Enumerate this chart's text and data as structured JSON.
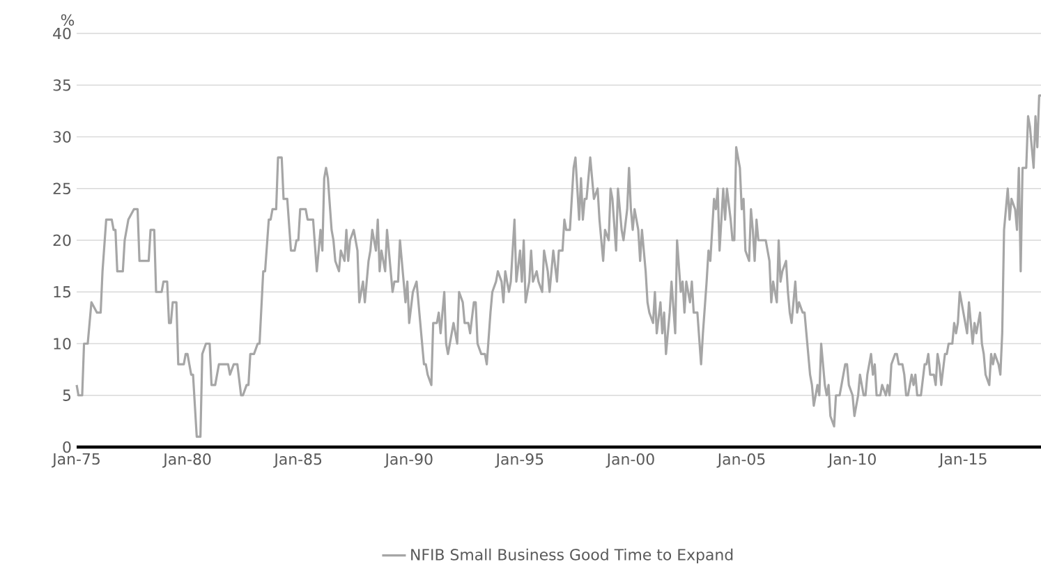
{
  "chart_data": {
    "type": "line",
    "ylabel": "%",
    "xlim": [
      "1975-01",
      "2018-07"
    ],
    "ylim": [
      0,
      40
    ],
    "xticks": [
      {
        "value": "1975-01",
        "label": "Jan-75"
      },
      {
        "value": "1980-01",
        "label": "Jan-80"
      },
      {
        "value": "1985-01",
        "label": "Jan-85"
      },
      {
        "value": "1990-01",
        "label": "Jan-90"
      },
      {
        "value": "1995-01",
        "label": "Jan-95"
      },
      {
        "value": "2000-01",
        "label": "Jan-00"
      },
      {
        "value": "2005-01",
        "label": "Jan-05"
      },
      {
        "value": "2010-01",
        "label": "Jan-10"
      },
      {
        "value": "2015-01",
        "label": "Jan-15"
      }
    ],
    "yticks": [
      0,
      5,
      10,
      15,
      20,
      25,
      30,
      35,
      40
    ],
    "grid": "y",
    "legend": "bottom",
    "series": [
      {
        "name": "NFIB Small Business Good Time to Expand",
        "color": "#a6a6a6",
        "x": [
          "1975-01",
          "1975-02",
          "1975-04",
          "1975-05",
          "1975-07",
          "1975-09",
          "1975-12",
          "1976-02",
          "1976-03",
          "1976-05",
          "1976-08",
          "1976-09",
          "1976-10",
          "1976-11",
          "1977-02",
          "1977-03",
          "1977-05",
          "1977-08",
          "1977-10",
          "1977-11",
          "1978-04",
          "1978-05",
          "1978-07",
          "1978-08",
          "1978-11",
          "1978-12",
          "1979-02",
          "1979-03",
          "1979-04",
          "1979-05",
          "1979-07",
          "1979-08",
          "1979-11",
          "1979-12",
          "1980-01",
          "1980-03",
          "1980-04",
          "1980-06",
          "1980-08",
          "1980-09",
          "1980-11",
          "1981-01",
          "1981-02",
          "1981-04",
          "1981-06",
          "1981-11",
          "1981-12",
          "1982-02",
          "1982-04",
          "1982-06",
          "1982-07",
          "1982-09",
          "1982-10",
          "1982-11",
          "1983-01",
          "1983-03",
          "1983-04",
          "1983-06",
          "1983-07",
          "1983-09",
          "1983-10",
          "1983-11",
          "1984-01",
          "1984-02",
          "1984-04",
          "1984-05",
          "1984-07",
          "1984-09",
          "1984-11",
          "1984-12",
          "1985-01",
          "1985-02",
          "1985-05",
          "1985-06",
          "1985-09",
          "1985-11",
          "1986-01",
          "1986-02",
          "1986-03",
          "1986-04",
          "1986-05",
          "1986-07",
          "1986-08",
          "1986-09",
          "1986-11",
          "1986-12",
          "1987-02",
          "1987-03",
          "1987-04",
          "1987-05",
          "1987-07",
          "1987-09",
          "1987-10",
          "1987-12",
          "1988-01",
          "1988-03",
          "1988-04",
          "1988-05",
          "1988-07",
          "1988-08",
          "1988-09",
          "1988-10",
          "1988-12",
          "1989-01",
          "1989-04",
          "1989-05",
          "1989-07",
          "1989-08",
          "1989-10",
          "1989-11",
          "1989-12",
          "1990-01",
          "1990-03",
          "1990-05",
          "1990-06",
          "1990-08",
          "1990-09",
          "1990-10",
          "1990-11",
          "1991-01",
          "1991-02",
          "1991-04",
          "1991-05",
          "1991-06",
          "1991-08",
          "1991-09",
          "1991-10",
          "1991-12",
          "1992-01",
          "1992-03",
          "1992-04",
          "1992-06",
          "1992-07",
          "1992-09",
          "1992-10",
          "1992-12",
          "1993-01",
          "1993-02",
          "1993-04",
          "1993-06",
          "1993-07",
          "1993-09",
          "1993-10",
          "1993-12",
          "1994-01",
          "1994-03",
          "1994-04",
          "1994-05",
          "1994-07",
          "1994-08",
          "1994-10",
          "1994-11",
          "1995-01",
          "1995-02",
          "1995-03",
          "1995-04",
          "1995-06",
          "1995-07",
          "1995-08",
          "1995-10",
          "1995-11",
          "1996-01",
          "1996-02",
          "1996-04",
          "1996-05",
          "1996-06",
          "1996-07",
          "1996-09",
          "1996-10",
          "1996-12",
          "1997-01",
          "1997-02",
          "1997-04",
          "1997-06",
          "1997-07",
          "1997-09",
          "1997-10",
          "1997-11",
          "1997-12",
          "1998-01",
          "1998-03",
          "1998-04",
          "1998-05",
          "1998-07",
          "1998-08",
          "1998-10",
          "1998-11",
          "1999-01",
          "1999-02",
          "1999-03",
          "1999-05",
          "1999-06",
          "1999-08",
          "1999-09",
          "1999-11",
          "1999-12",
          "2000-01",
          "2000-02",
          "2000-03",
          "2000-05",
          "2000-06",
          "2000-07",
          "2000-09",
          "2000-10",
          "2000-11",
          "2001-01",
          "2001-02",
          "2001-03",
          "2001-05",
          "2001-06",
          "2001-07",
          "2001-08",
          "2001-10",
          "2001-11",
          "2002-01",
          "2002-02",
          "2002-04",
          "2002-05",
          "2002-06",
          "2002-07",
          "2002-09",
          "2002-10",
          "2002-11",
          "2003-01",
          "2003-03",
          "2003-04",
          "2003-06",
          "2003-07",
          "2003-08",
          "2003-10",
          "2003-11",
          "2003-12",
          "2004-01",
          "2004-03",
          "2004-04",
          "2004-05",
          "2004-07",
          "2004-08",
          "2004-09",
          "2004-10",
          "2004-12",
          "2005-01",
          "2005-02",
          "2005-03",
          "2005-05",
          "2005-06",
          "2005-07",
          "2005-08",
          "2005-09",
          "2005-10",
          "2005-12",
          "2006-02",
          "2006-04",
          "2006-05",
          "2006-06",
          "2006-08",
          "2006-09",
          "2006-10",
          "2006-11",
          "2007-01",
          "2007-02",
          "2007-03",
          "2007-04",
          "2007-06",
          "2007-07",
          "2007-08",
          "2007-10",
          "2007-11",
          "2008-01",
          "2008-02",
          "2008-03",
          "2008-04",
          "2008-06",
          "2008-07",
          "2008-08",
          "2008-10",
          "2008-11",
          "2008-12",
          "2009-01",
          "2009-03",
          "2009-04",
          "2009-06",
          "2009-07",
          "2009-09",
          "2009-10",
          "2009-11",
          "2010-01",
          "2010-02",
          "2010-04",
          "2010-05",
          "2010-07",
          "2010-08",
          "2010-09",
          "2010-11",
          "2010-12",
          "2011-01",
          "2011-02",
          "2011-04",
          "2011-05",
          "2011-07",
          "2011-08",
          "2011-09",
          "2011-10",
          "2011-12",
          "2012-01",
          "2012-02",
          "2012-04",
          "2012-05",
          "2012-06",
          "2012-07",
          "2012-09",
          "2012-10",
          "2012-11",
          "2012-12",
          "2013-02",
          "2013-04",
          "2013-05",
          "2013-06",
          "2013-07",
          "2013-09",
          "2013-10",
          "2013-11",
          "2013-12",
          "2014-01",
          "2014-03",
          "2014-04",
          "2014-05",
          "2014-07",
          "2014-08",
          "2014-09",
          "2014-10",
          "2014-11",
          "2015-01",
          "2015-02",
          "2015-03",
          "2015-04",
          "2015-06",
          "2015-07",
          "2015-08",
          "2015-10",
          "2015-11",
          "2015-12",
          "2016-01",
          "2016-03",
          "2016-04",
          "2016-05",
          "2016-06",
          "2016-08",
          "2016-09",
          "2016-10",
          "2016-11",
          "2017-01",
          "2017-02",
          "2017-03",
          "2017-05",
          "2017-06",
          "2017-07",
          "2017-08",
          "2017-09",
          "2017-11",
          "2017-12",
          "2018-01",
          "2018-03",
          "2018-04",
          "2018-05",
          "2018-06",
          "2018-07"
        ],
        "values": [
          6,
          5,
          5,
          10,
          10,
          14,
          13,
          13,
          17,
          22,
          22,
          21,
          21,
          17,
          17,
          20,
          22,
          23,
          23,
          18,
          18,
          21,
          21,
          15,
          15,
          16,
          16,
          12,
          12,
          14,
          14,
          8,
          8,
          9,
          9,
          7,
          7,
          1,
          1,
          9,
          10,
          10,
          6,
          6,
          8,
          8,
          7,
          8,
          8,
          5,
          5,
          6,
          6,
          9,
          9,
          10,
          10,
          17,
          17,
          22,
          22,
          23,
          23,
          28,
          28,
          24,
          24,
          19,
          19,
          20,
          20,
          23,
          23,
          22,
          22,
          17,
          21,
          19,
          26,
          27,
          26,
          21,
          20,
          18,
          17,
          19,
          18,
          21,
          18,
          20,
          21,
          19,
          14,
          16,
          14,
          18,
          19,
          21,
          19,
          22,
          17,
          19,
          17,
          21,
          15,
          16,
          16,
          20,
          16,
          14,
          16,
          12,
          15,
          16,
          14,
          10,
          8,
          8,
          7,
          6,
          12,
          12,
          13,
          11,
          15,
          10,
          9,
          11,
          12,
          10,
          15,
          14,
          12,
          12,
          11,
          14,
          14,
          10,
          9,
          9,
          8,
          13,
          15,
          16,
          17,
          16,
          14,
          17,
          15,
          16,
          22,
          16,
          19,
          16,
          20,
          14,
          16,
          19,
          16,
          17,
          16,
          15,
          19,
          17,
          15,
          17,
          19,
          16,
          19,
          19,
          22,
          21,
          21,
          27,
          28,
          22,
          26,
          22,
          24,
          24,
          28,
          26,
          24,
          25,
          22,
          18,
          21,
          20,
          25,
          24,
          19,
          25,
          21,
          20,
          23,
          27,
          23,
          21,
          23,
          21,
          18,
          21,
          17,
          14,
          13,
          12,
          15,
          11,
          14,
          11,
          13,
          9,
          13,
          16,
          11,
          20,
          15,
          16,
          13,
          16,
          14,
          16,
          13,
          13,
          8,
          11,
          16,
          19,
          18,
          24,
          23,
          25,
          19,
          25,
          22,
          25,
          22,
          20,
          20,
          29,
          27,
          23,
          24,
          19,
          18,
          23,
          21,
          18,
          22,
          20,
          20,
          20,
          18,
          14,
          16,
          14,
          20,
          16,
          17,
          18,
          15,
          13,
          12,
          16,
          13,
          14,
          13,
          13,
          9,
          7,
          6,
          4,
          6,
          5,
          10,
          6,
          5,
          6,
          3,
          2,
          5,
          5,
          6,
          8,
          8,
          6,
          5,
          3,
          5,
          7,
          5,
          5,
          7,
          9,
          7,
          8,
          5,
          5,
          6,
          5,
          6,
          5,
          8,
          9,
          9,
          8,
          8,
          7,
          5,
          5,
          7,
          6,
          7,
          5,
          5,
          8,
          8,
          9,
          7,
          7,
          6,
          9,
          8,
          6,
          9,
          9,
          10,
          10,
          12,
          11,
          12,
          15,
          13,
          12,
          11,
          14,
          10,
          12,
          11,
          13,
          10,
          9,
          7,
          6,
          9,
          8,
          9,
          8,
          7,
          11,
          21,
          25,
          22,
          24,
          23,
          21,
          27,
          17,
          27,
          27,
          32,
          31,
          27,
          32,
          29,
          34,
          34
        ]
      }
    ]
  }
}
